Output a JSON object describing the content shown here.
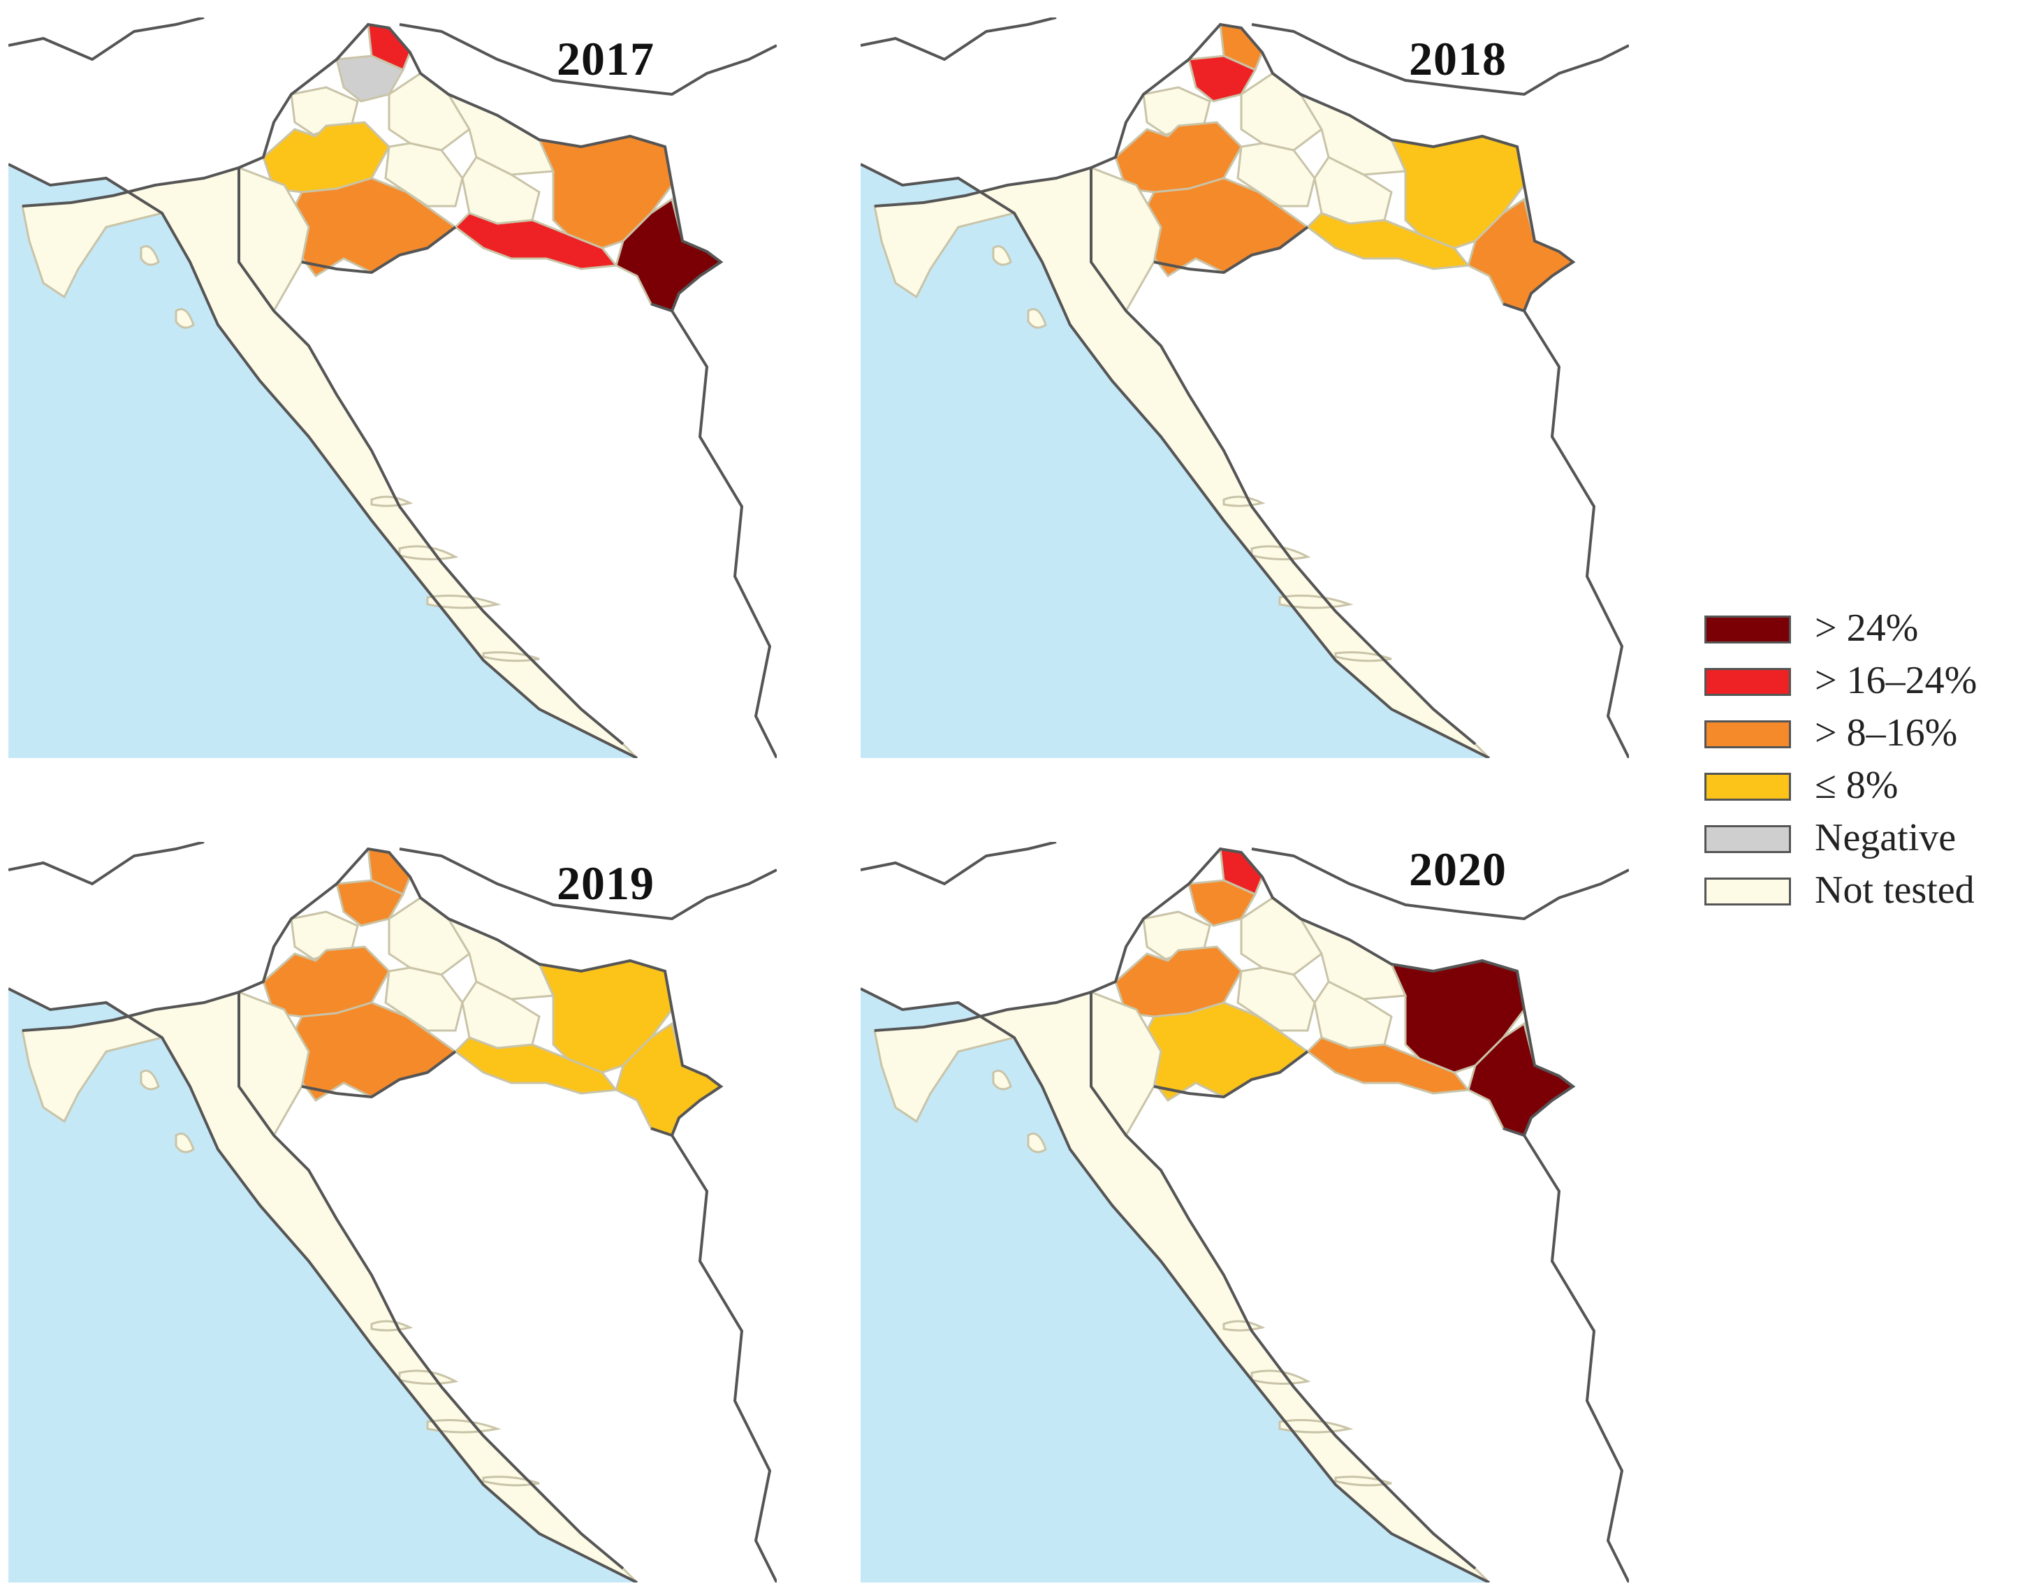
{
  "legend": [
    {
      "key": "gt24",
      "label": "> 24%",
      "color": "#7b0006"
    },
    {
      "key": "r16_24",
      "label": "> 16–24%",
      "color": "#ee2224"
    },
    {
      "key": "r8_16",
      "label": "> 8–16%",
      "color": "#f58a2a"
    },
    {
      "key": "le8",
      "label": "≤ 8%",
      "color": "#fcc319"
    },
    {
      "key": "neg",
      "label": "Negative",
      "color": "#cfcfcf"
    },
    {
      "key": "nt",
      "label": "Not tested",
      "color": "#fdfbe6"
    }
  ],
  "colors": {
    "sea": "#c5e8f7",
    "outside": "#ffffff",
    "border": "#555555"
  },
  "maps": [
    {
      "year": "2017",
      "regions": {
        "medjimurje": "r16_24",
        "varazdin": "neg",
        "krapina": "nt",
        "zagreb_city": "r16_24",
        "zagreb_county": "le8",
        "sisak": "r8_16",
        "brod": "r16_24",
        "osijek": "r8_16",
        "vukovar": "gt24",
        "koprivnica": "nt",
        "bjelovar": "nt",
        "virovitica": "nt",
        "pozega": "nt",
        "karlovac": "nt"
      }
    },
    {
      "year": "2018",
      "regions": {
        "medjimurje": "r8_16",
        "varazdin": "r16_24",
        "krapina": "nt",
        "zagreb_city": "le8",
        "zagreb_county": "r8_16",
        "sisak": "r8_16",
        "brod": "le8",
        "osijek": "le8",
        "vukovar": "r8_16",
        "koprivnica": "nt",
        "bjelovar": "nt",
        "virovitica": "nt",
        "pozega": "nt",
        "karlovac": "nt"
      }
    },
    {
      "year": "2019",
      "regions": {
        "medjimurje": "r8_16",
        "varazdin": "r8_16",
        "krapina": "nt",
        "zagreb_city": "le8",
        "zagreb_county": "r8_16",
        "sisak": "r8_16",
        "brod": "le8",
        "osijek": "le8",
        "vukovar": "le8",
        "koprivnica": "nt",
        "bjelovar": "nt",
        "virovitica": "nt",
        "pozega": "nt",
        "karlovac": "nt"
      }
    },
    {
      "year": "2020",
      "regions": {
        "medjimurje": "r16_24",
        "varazdin": "r8_16",
        "krapina": "nt",
        "zagreb_city": "le8",
        "zagreb_county": "r8_16",
        "sisak": "le8",
        "brod": "r8_16",
        "osijek": "gt24",
        "vukovar": "gt24",
        "koprivnica": "nt",
        "bjelovar": "nt",
        "virovitica": "nt",
        "pozega": "nt",
        "karlovac": "nt"
      }
    }
  ]
}
